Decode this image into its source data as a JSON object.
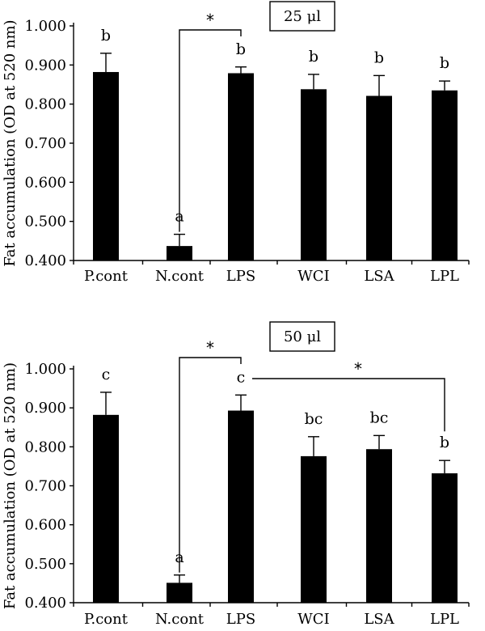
{
  "chart_data": [
    {
      "type": "bar",
      "title": "25 μl",
      "ylabel": "Fat accumulation (OD at 520 nm)",
      "ylim": [
        0.4,
        1.0
      ],
      "yticks": [
        "0.400",
        "0.500",
        "0.600",
        "0.700",
        "0.800",
        "0.900",
        "1.000"
      ],
      "categories": [
        "P.cont",
        "N.cont",
        "LPS",
        "WCI",
        "LSA",
        "LPL"
      ],
      "values": [
        0.882,
        0.437,
        0.879,
        0.838,
        0.821,
        0.835
      ],
      "errors": [
        0.048,
        0.03,
        0.016,
        0.038,
        0.052,
        0.024
      ],
      "significance_labels": [
        "b",
        "a",
        "b",
        "b",
        "b",
        "b"
      ],
      "comparisons": [
        {
          "from": "N.cont",
          "to": "LPS",
          "label": "*"
        }
      ]
    },
    {
      "type": "bar",
      "title": "50 μl",
      "ylabel": "Fat accumulation (OD at 520 nm)",
      "ylim": [
        0.4,
        1.0
      ],
      "yticks": [
        "0.400",
        "0.500",
        "0.600",
        "0.700",
        "0.800",
        "0.900",
        "1.000"
      ],
      "categories": [
        "P.cont",
        "N.cont",
        "LPS",
        "WCI",
        "LSA",
        "LPL"
      ],
      "values": [
        0.882,
        0.451,
        0.893,
        0.776,
        0.794,
        0.732
      ],
      "errors": [
        0.058,
        0.02,
        0.04,
        0.05,
        0.035,
        0.033
      ],
      "significance_labels": [
        "c",
        "a",
        "c",
        "bc",
        "bc",
        "b"
      ],
      "comparisons": [
        {
          "from": "N.cont",
          "to": "LPS",
          "label": "*"
        },
        {
          "from": "LPS",
          "to": "LPL",
          "label": "*"
        }
      ]
    }
  ]
}
